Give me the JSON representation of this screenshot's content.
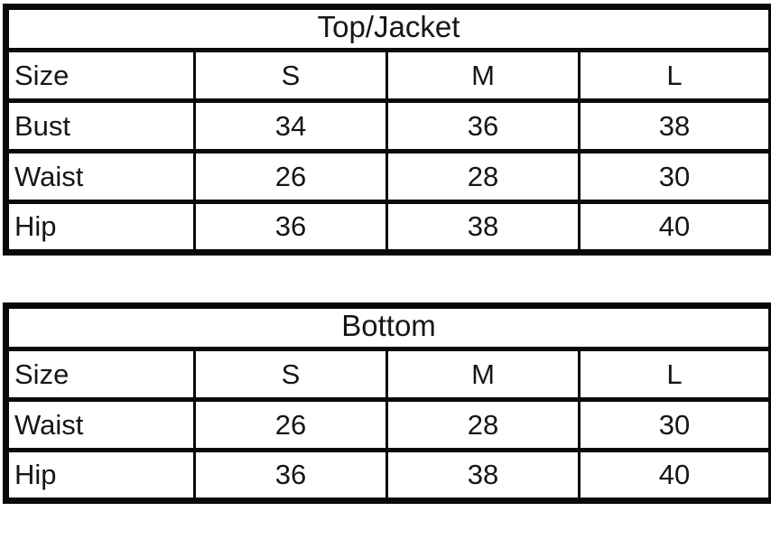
{
  "colors": {
    "border": "#0a0a0a",
    "text": "#161616",
    "background": "#ffffff"
  },
  "chart_data": [
    {
      "type": "table",
      "title": "Top/Jacket",
      "columns": [
        "Size",
        "S",
        "M",
        "L"
      ],
      "rows": [
        {
          "label": "Bust",
          "values": [
            34,
            36,
            38
          ]
        },
        {
          "label": "Waist",
          "values": [
            26,
            28,
            30
          ]
        },
        {
          "label": "Hip",
          "values": [
            36,
            38,
            40
          ]
        }
      ]
    },
    {
      "type": "table",
      "title": "Bottom",
      "columns": [
        "Size",
        "S",
        "M",
        "L"
      ],
      "rows": [
        {
          "label": "Waist",
          "values": [
            26,
            28,
            30
          ]
        },
        {
          "label": "Hip",
          "values": [
            36,
            38,
            40
          ]
        }
      ]
    }
  ]
}
